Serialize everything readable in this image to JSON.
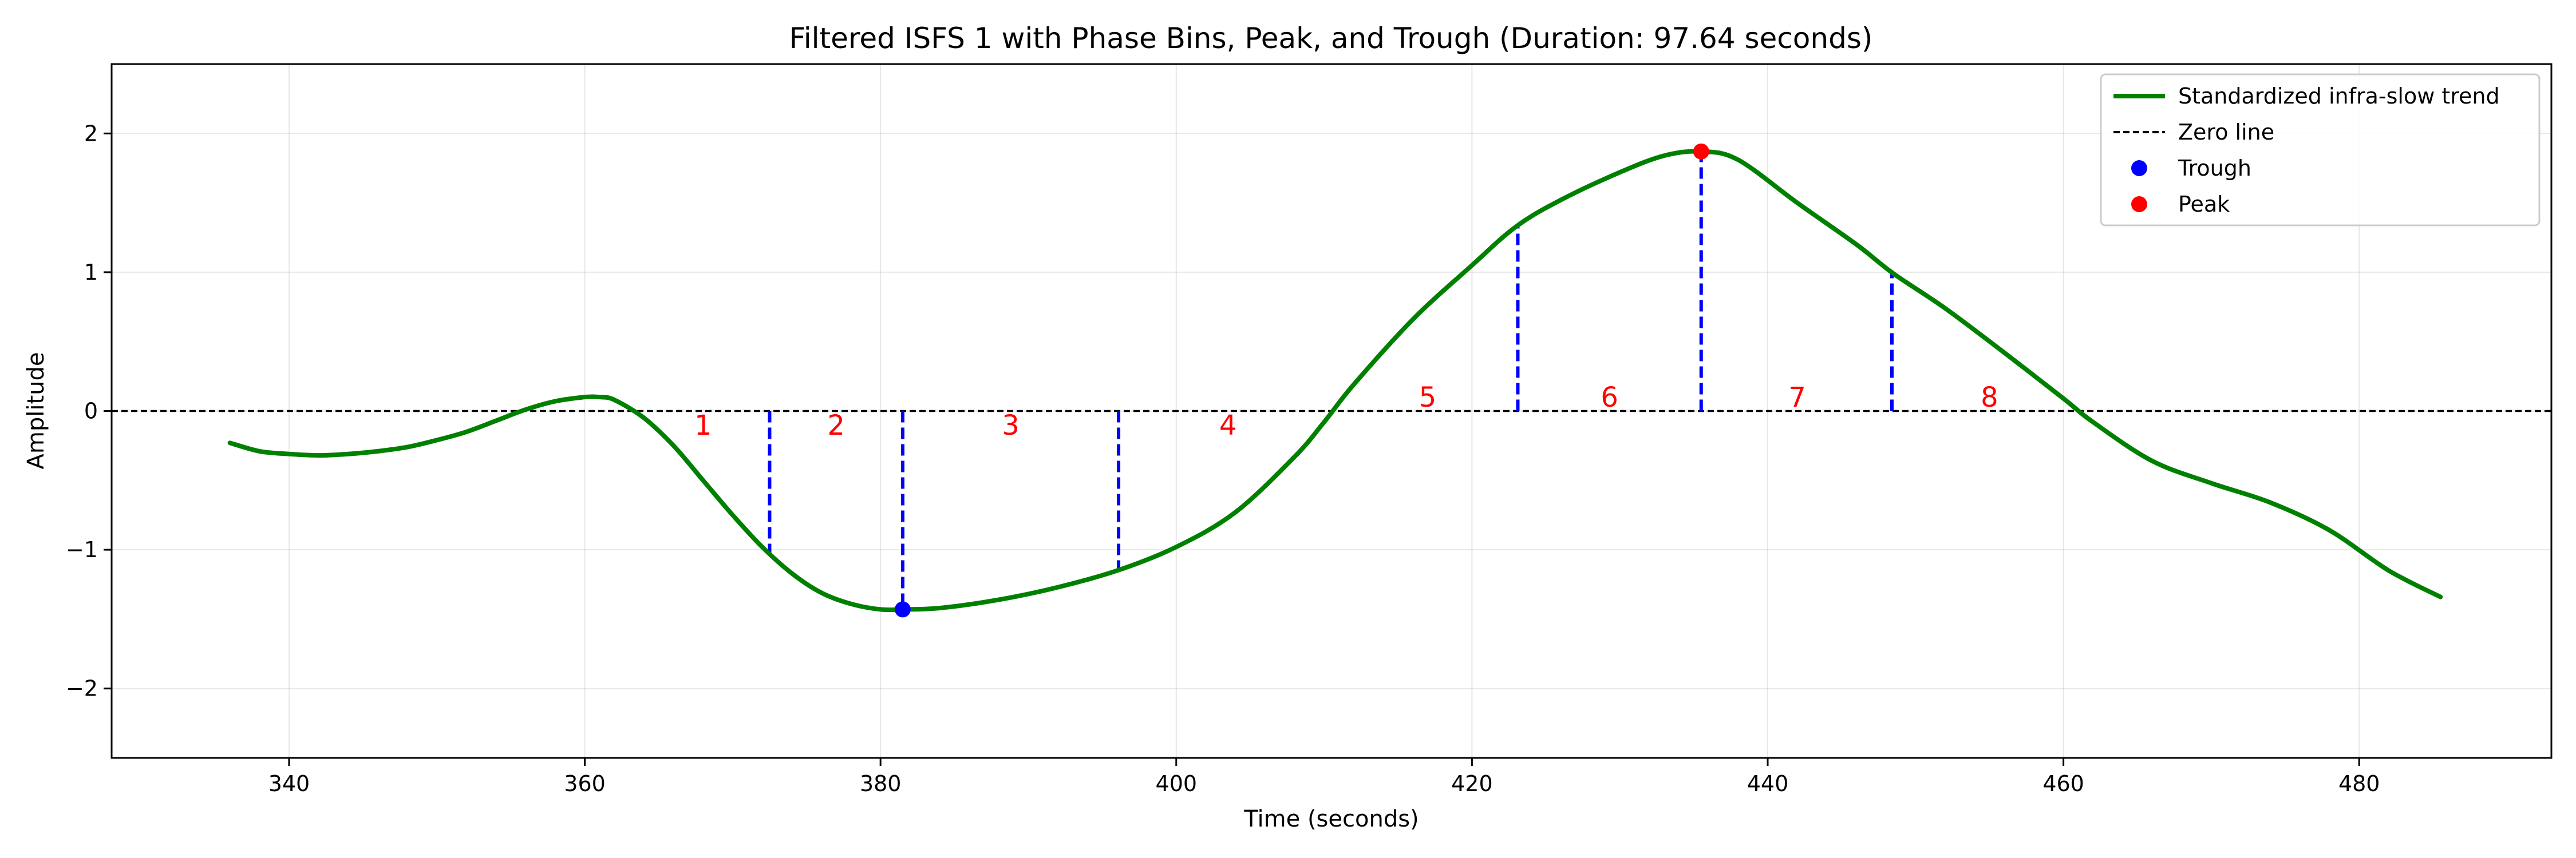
{
  "chart_data": {
    "type": "line",
    "title": "Filtered ISFS 1 with Phase Bins, Peak, and Trough (Duration: 97.64 seconds)",
    "xlabel": "Time (seconds)",
    "ylabel": "Amplitude",
    "xlim": [
      328,
      493
    ],
    "ylim": [
      -2.5,
      2.5
    ],
    "x_ticks": [
      340,
      360,
      380,
      400,
      420,
      440,
      460,
      480
    ],
    "y_ticks": [
      -2,
      -1,
      0,
      1,
      2
    ],
    "y_tick_labels": [
      "−2",
      "−1",
      "0",
      "1",
      "2"
    ],
    "grid": true,
    "legend_position": "top-right",
    "series": [
      {
        "name": "Standardized infra-slow trend",
        "color": "#008000",
        "x": [
          336,
          338,
          340,
          342,
          344,
          346,
          348,
          350,
          352,
          354,
          356,
          358,
          360,
          361,
          362,
          364,
          366,
          368,
          370,
          372,
          374,
          376,
          378,
          380,
          381.5,
          384,
          388,
          392,
          396,
          400,
          404,
          408,
          410,
          412,
          416,
          420,
          423,
          426,
          430,
          433,
          435.5,
          438,
          442,
          446,
          448.5,
          452,
          456,
          460,
          462,
          466,
          470,
          474,
          478,
          482,
          485.5
        ],
        "y": [
          -0.23,
          -0.29,
          -0.31,
          -0.32,
          -0.31,
          -0.29,
          -0.26,
          -0.21,
          -0.15,
          -0.07,
          0.01,
          0.07,
          0.1,
          0.1,
          0.08,
          -0.05,
          -0.25,
          -0.5,
          -0.75,
          -0.98,
          -1.17,
          -1.31,
          -1.39,
          -1.43,
          -1.43,
          -1.42,
          -1.36,
          -1.27,
          -1.15,
          -0.98,
          -0.73,
          -0.33,
          -0.08,
          0.19,
          0.66,
          1.05,
          1.33,
          1.52,
          1.72,
          1.84,
          1.87,
          1.81,
          1.5,
          1.2,
          0.99,
          0.74,
          0.42,
          0.09,
          -0.08,
          -0.36,
          -0.52,
          -0.66,
          -0.86,
          -1.15,
          -1.34
        ]
      }
    ],
    "zero_line": {
      "name": "Zero line",
      "value": 0,
      "color": "#000000"
    },
    "trough": {
      "name": "Trough",
      "x": 381.5,
      "y": -1.43,
      "color": "#0000ff"
    },
    "peak": {
      "name": "Peak",
      "x": 435.5,
      "y": 1.87,
      "color": "#ff0000"
    },
    "phase_boundaries": [
      {
        "x": 372.5,
        "y": -1.02
      },
      {
        "x": 381.5,
        "y": -1.43
      },
      {
        "x": 396.1,
        "y": -1.15
      },
      {
        "x": 423.1,
        "y": 1.33
      },
      {
        "x": 435.5,
        "y": 1.87
      },
      {
        "x": 448.4,
        "y": 0.99
      }
    ],
    "bin_color": "#ff0000",
    "boundary_color": "#0000ff",
    "phase_bins": [
      {
        "label": "1",
        "x": 368.0,
        "y": -0.1
      },
      {
        "label": "2",
        "x": 377.0,
        "y": -0.1
      },
      {
        "label": "3",
        "x": 388.8,
        "y": -0.1
      },
      {
        "label": "4",
        "x": 403.5,
        "y": -0.1
      },
      {
        "label": "5",
        "x": 417.0,
        "y": 0.1
      },
      {
        "label": "6",
        "x": 429.3,
        "y": 0.1
      },
      {
        "label": "7",
        "x": 442.0,
        "y": 0.1
      },
      {
        "label": "8",
        "x": 455.0,
        "y": 0.1
      }
    ]
  }
}
